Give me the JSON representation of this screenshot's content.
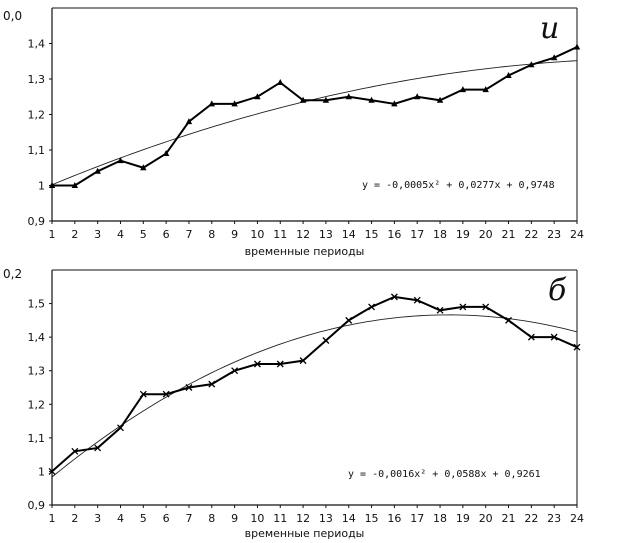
{
  "chart_data": [
    {
      "type": "line",
      "corner_label": "и",
      "top_tick_label": "0,0",
      "xlabel": "временные периоды",
      "x": [
        1,
        2,
        3,
        4,
        5,
        6,
        7,
        8,
        9,
        10,
        11,
        12,
        13,
        14,
        15,
        16,
        17,
        18,
        19,
        20,
        21,
        22,
        23,
        24
      ],
      "y_ticks": [
        0.9,
        1.0,
        1.1,
        1.2,
        1.3,
        1.4
      ],
      "y_tick_labels": [
        "0,9",
        "1",
        "1,1",
        "1,2",
        "1,3",
        "1,4"
      ],
      "ylim": [
        0.9,
        1.5
      ],
      "series": [
        {
          "marker": "triangle",
          "values": [
            1.0,
            1.0,
            1.04,
            1.07,
            1.05,
            1.09,
            1.18,
            1.23,
            1.23,
            1.25,
            1.29,
            1.24,
            1.24,
            1.25,
            1.24,
            1.23,
            1.25,
            1.24,
            1.27,
            1.27,
            1.31,
            1.34,
            1.36,
            1.39
          ]
        }
      ],
      "trendline": {
        "equation": "y = -0,0005x² + 0,0277x + 0,9748",
        "a": -0.0005,
        "b": 0.0277,
        "c": 0.9748
      }
    },
    {
      "type": "line",
      "corner_label": "б",
      "top_tick_label": "0,2",
      "xlabel": "временные периоды",
      "x": [
        1,
        2,
        3,
        4,
        5,
        6,
        7,
        8,
        9,
        10,
        11,
        12,
        13,
        14,
        15,
        16,
        17,
        18,
        19,
        20,
        21,
        22,
        23,
        24
      ],
      "y_ticks": [
        0.9,
        1.0,
        1.1,
        1.2,
        1.3,
        1.4,
        1.5
      ],
      "y_tick_labels": [
        "0,9",
        "1",
        "1,1",
        "1,2",
        "1,3",
        "1,4",
        "1,5"
      ],
      "ylim": [
        0.9,
        1.6
      ],
      "series": [
        {
          "marker": "x",
          "values": [
            1.0,
            1.06,
            1.07,
            1.13,
            1.23,
            1.23,
            1.25,
            1.26,
            1.3,
            1.32,
            1.32,
            1.33,
            1.39,
            1.45,
            1.49,
            1.52,
            1.51,
            1.48,
            1.49,
            1.49,
            1.45,
            1.4,
            1.4,
            1.37
          ]
        }
      ],
      "trendline": {
        "equation": "y = -0,0016x² + 0,0588x + 0,9261",
        "a": -0.0016,
        "b": 0.0588,
        "c": 0.9261
      }
    }
  ]
}
